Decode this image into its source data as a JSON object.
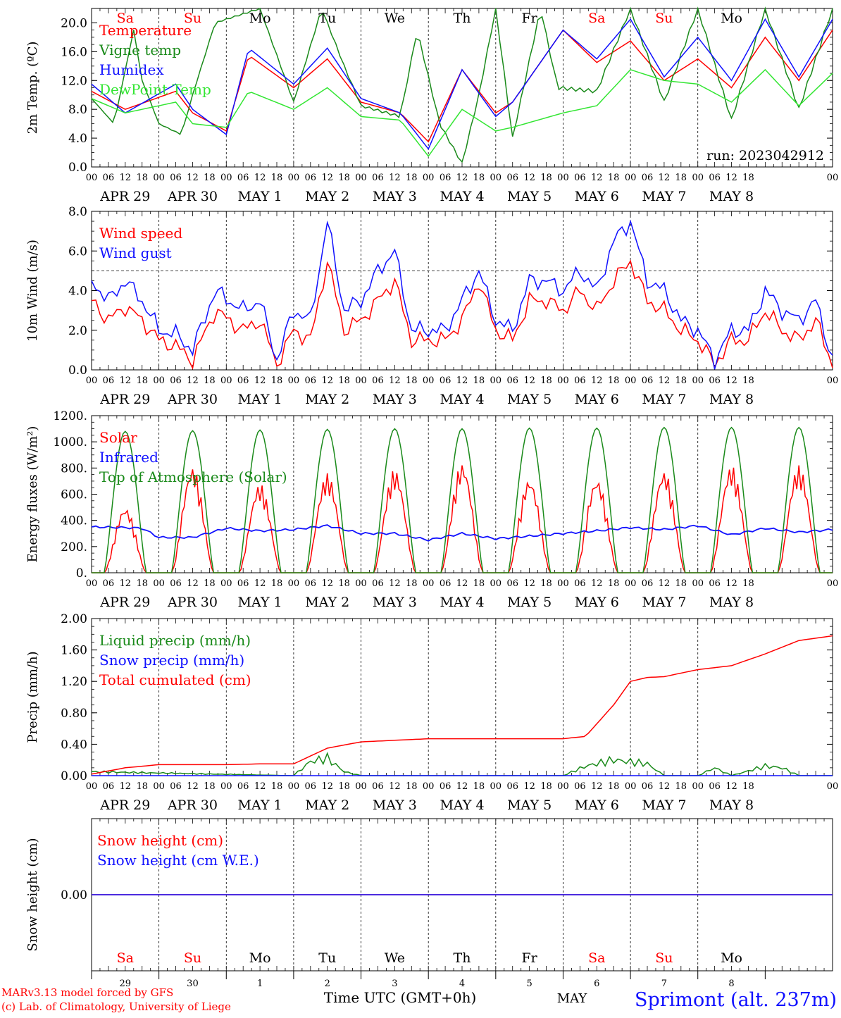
{
  "colors": {
    "red": "#ff0000",
    "green": "#1a8a1a",
    "blue": "#1010ff",
    "lightgreen": "#33e633",
    "black": "#000000",
    "snow": "#8a2be2"
  },
  "x_axis": {
    "hour_ticks": [
      "00",
      "06",
      "12",
      "18"
    ],
    "final_tick": "00",
    "date_labels": [
      "APR 29",
      "APR 30",
      "MAY  1",
      "MAY  2",
      "MAY  3",
      "MAY  4",
      "MAY  5",
      "MAY  6",
      "MAY  7",
      "MAY  8"
    ],
    "weekdays": [
      {
        "label": "Sa",
        "color": "#ff0000"
      },
      {
        "label": "Su",
        "color": "#ff0000"
      },
      {
        "label": "Mo",
        "color": "#000000"
      },
      {
        "label": "Tu",
        "color": "#000000"
      },
      {
        "label": "We",
        "color": "#000000"
      },
      {
        "label": "Th",
        "color": "#000000"
      },
      {
        "label": "Fr",
        "color": "#000000"
      },
      {
        "label": "Sa",
        "color": "#ff0000"
      },
      {
        "label": "Su",
        "color": "#ff0000"
      },
      {
        "label": "Mo",
        "color": "#000000"
      }
    ],
    "bottom_day_numbers": [
      "29",
      "30",
      "1",
      "2",
      "3",
      "4",
      "5",
      "6",
      "7",
      "8"
    ],
    "time_label": "Time UTC (GMT+0h)",
    "month_label": "MAY"
  },
  "footer": {
    "model_line": "MARv3.13 model forced by GFS",
    "lab_line": "(c) Lab. of Climatology, University of Liege",
    "station": "Sprimont (alt. 237m)"
  },
  "chart_data": [
    {
      "type": "line",
      "ylabel": "2m Temp. (ºC)",
      "ylim": [
        0,
        22
      ],
      "yticks": [
        "0.0",
        "4.0",
        "8.0",
        "12.0",
        "16.0",
        "20.0"
      ],
      "run_label": "run: 2023042912",
      "series": [
        {
          "name": "Temperature",
          "color": "#ff0000",
          "x": [
            0,
            12,
            30,
            36,
            48,
            56,
            72,
            84,
            96,
            110,
            120,
            132,
            144,
            150,
            168,
            180,
            192,
            204,
            216,
            228,
            240,
            252,
            264,
            276
          ],
          "y": [
            10.5,
            8.0,
            10.5,
            7.5,
            5.0,
            15.5,
            11.0,
            15.0,
            9.0,
            7.5,
            3.5,
            13.5,
            7.5,
            9.0,
            19.0,
            14.5,
            17.5,
            12.0,
            15.0,
            11.0,
            18.0,
            12.0,
            19.0,
            14.0
          ]
        },
        {
          "name": "Vigne temp",
          "color": "#1a8a1a",
          "x": [
            0,
            8,
            15,
            18,
            24,
            32,
            36,
            44,
            60,
            72,
            82,
            90,
            96,
            110,
            116,
            124,
            132,
            138,
            144,
            150,
            160,
            166,
            180,
            192,
            204,
            216,
            228,
            240,
            252,
            264,
            276
          ],
          "y": [
            9.5,
            6.0,
            19.0,
            12.0,
            6.0,
            4.5,
            10.0,
            20.0,
            22.0,
            9.0,
            22.0,
            14.0,
            8.5,
            7.0,
            19.0,
            6.0,
            0.5,
            10.0,
            22.0,
            4.0,
            22.0,
            11.0,
            10.5,
            22.0,
            9.0,
            22.0,
            6.5,
            22.0,
            8.0,
            22.0,
            9.5
          ]
        },
        {
          "name": "Humidex",
          "color": "#1010ff",
          "x": [
            0,
            12,
            30,
            36,
            48,
            56,
            72,
            84,
            96,
            110,
            120,
            132,
            144,
            150,
            168,
            180,
            192,
            204,
            216,
            228,
            240,
            252,
            264,
            276
          ],
          "y": [
            11.5,
            7.5,
            11.5,
            8.0,
            4.5,
            16.5,
            11.5,
            16.5,
            9.5,
            7.5,
            2.5,
            13.5,
            7.0,
            9.0,
            19.0,
            15.0,
            20.5,
            12.5,
            18.0,
            12.0,
            20.5,
            12.5,
            20.5,
            15.0
          ]
        },
        {
          "name": "DewPoint Temp",
          "color": "#33e633",
          "x": [
            0,
            12,
            30,
            36,
            48,
            56,
            72,
            84,
            96,
            110,
            120,
            132,
            144,
            150,
            168,
            180,
            192,
            204,
            216,
            228,
            240,
            252,
            264,
            276
          ],
          "y": [
            9.5,
            7.5,
            9.0,
            6.0,
            5.5,
            10.5,
            8.0,
            11.0,
            7.0,
            6.5,
            1.5,
            8.0,
            5.0,
            5.5,
            7.5,
            8.5,
            13.5,
            12.0,
            11.5,
            9.0,
            13.5,
            8.5,
            13.0,
            9.5
          ]
        }
      ]
    },
    {
      "type": "line",
      "ylabel": "10m Wind (m/s)",
      "ylim": [
        0,
        8
      ],
      "yticks": [
        "0.0",
        "2.0",
        "4.0",
        "6.0",
        "8.0"
      ],
      "reference_line": 5,
      "series": [
        {
          "name": "Wind speed",
          "color": "#ff0000",
          "x": [
            0,
            6,
            12,
            18,
            24,
            30,
            36,
            44,
            54,
            60,
            66,
            72,
            78,
            84,
            90,
            96,
            102,
            108,
            114,
            120,
            126,
            132,
            138,
            144,
            150,
            156,
            162,
            168,
            174,
            180,
            186,
            192,
            198,
            204,
            210,
            216,
            222,
            228,
            234,
            240,
            246,
            252,
            258,
            264,
            270,
            276
          ],
          "y": [
            3.5,
            2.5,
            3.2,
            2.5,
            1.5,
            1.2,
            0.5,
            3.0,
            2.0,
            2.5,
            0.3,
            2.0,
            1.5,
            5.5,
            2.0,
            2.5,
            3.5,
            4.5,
            1.5,
            1.5,
            1.5,
            2.5,
            4.5,
            2.0,
            1.5,
            3.5,
            3.5,
            3.0,
            4.0,
            3.0,
            4.5,
            5.5,
            3.5,
            3.0,
            2.0,
            1.5,
            0.3,
            1.5,
            1.5,
            3.0,
            2.0,
            1.5,
            2.5,
            0.3,
            3.0,
            2.0
          ]
        },
        {
          "name": "Wind gust",
          "color": "#1010ff",
          "x": [
            0,
            6,
            12,
            18,
            24,
            30,
            36,
            44,
            54,
            60,
            66,
            72,
            78,
            84,
            90,
            96,
            102,
            108,
            114,
            120,
            126,
            132,
            138,
            144,
            150,
            156,
            162,
            168,
            174,
            180,
            186,
            192,
            198,
            204,
            210,
            216,
            222,
            228,
            234,
            240,
            246,
            252,
            258,
            264,
            270,
            276
          ],
          "y": [
            4.5,
            3.5,
            4.5,
            3.5,
            2.0,
            1.8,
            1.0,
            4.0,
            3.0,
            3.5,
            0.5,
            3.0,
            2.5,
            7.5,
            3.0,
            3.5,
            5.0,
            6.0,
            2.0,
            2.0,
            2.0,
            3.5,
            5.0,
            2.5,
            2.0,
            4.5,
            4.5,
            4.0,
            5.0,
            4.0,
            6.5,
            7.5,
            4.5,
            4.0,
            2.5,
            2.0,
            0.5,
            2.0,
            2.0,
            4.0,
            3.0,
            2.5,
            3.5,
            0.5,
            4.5,
            3.0
          ]
        }
      ]
    },
    {
      "type": "line",
      "ylabel": "Energy fluxes (W/m²)",
      "ylim": [
        0,
        1200
      ],
      "yticks": [
        "0.",
        "200.",
        "400.",
        "600.",
        "800.",
        "1000.",
        "1200."
      ],
      "series": [
        {
          "name": "Solar",
          "color": "#ff0000",
          "peaks": [
            500,
            810,
            680,
            760,
            790,
            840,
            720,
            720,
            780,
            820
          ]
        },
        {
          "name": "Infrared",
          "color": "#1010ff",
          "x": [
            0,
            12,
            18,
            24,
            36,
            48,
            60,
            72,
            84,
            96,
            108,
            120,
            132,
            144,
            156,
            168,
            180,
            192,
            204,
            216,
            228,
            240,
            252,
            264,
            276
          ],
          "y": [
            350,
            345,
            340,
            270,
            270,
            340,
            320,
            330,
            360,
            300,
            300,
            250,
            300,
            260,
            280,
            300,
            320,
            345,
            330,
            360,
            290,
            340,
            310,
            330,
            300
          ]
        },
        {
          "name": "Top of Atmosphere (Solar)",
          "color": "#1a8a1a",
          "peaks": [
            1080,
            1085,
            1090,
            1095,
            1100,
            1100,
            1105,
            1105,
            1110,
            1110
          ]
        }
      ]
    },
    {
      "type": "line",
      "ylabel": "Precip (mm/h)",
      "ylim": [
        0,
        2.0
      ],
      "yticks": [
        "0.00",
        "0.40",
        "0.80",
        "1.20",
        "1.60",
        "2.00"
      ],
      "series": [
        {
          "name": "Liquid precip (mm/h)",
          "color": "#1a8a1a",
          "x": [
            0,
            72,
            78,
            84,
            90,
            96,
            168,
            176,
            186,
            198,
            204,
            216,
            222,
            228,
            240,
            246,
            252,
            264,
            270,
            276
          ],
          "y": [
            0.05,
            0.0,
            0.18,
            0.22,
            0.05,
            0.0,
            0.0,
            0.12,
            0.2,
            0.15,
            0.0,
            0.0,
            0.1,
            0.0,
            0.12,
            0.1,
            0.0,
            0.0,
            0.08,
            0.0
          ]
        },
        {
          "name": "Snow precip (mm/h)",
          "color": "#1010ff",
          "x": [
            0,
            276
          ],
          "y": [
            0,
            0
          ]
        },
        {
          "name": "Total cumulated (cm)",
          "color": "#ff0000",
          "x": [
            0,
            12,
            24,
            48,
            60,
            72,
            84,
            96,
            120,
            150,
            168,
            176,
            186,
            192,
            198,
            204,
            216,
            228,
            240,
            252,
            264,
            276
          ],
          "y": [
            0.02,
            0.1,
            0.14,
            0.14,
            0.15,
            0.15,
            0.35,
            0.43,
            0.47,
            0.47,
            0.47,
            0.5,
            0.9,
            1.2,
            1.25,
            1.26,
            1.35,
            1.4,
            1.55,
            1.72,
            1.78,
            1.8
          ]
        }
      ]
    },
    {
      "type": "line",
      "ylabel": "Snow height (cm)",
      "ylim": [
        -1,
        1
      ],
      "yticks": [
        "0.00"
      ],
      "series": [
        {
          "name": "Snow height (cm)",
          "color": "#ff0000",
          "x": [
            0,
            276
          ],
          "y": [
            0,
            0
          ]
        },
        {
          "name": "Snow height (cm W.E.)",
          "color": "#1010ff",
          "x": [
            0,
            276
          ],
          "y": [
            0,
            0
          ]
        }
      ]
    }
  ]
}
